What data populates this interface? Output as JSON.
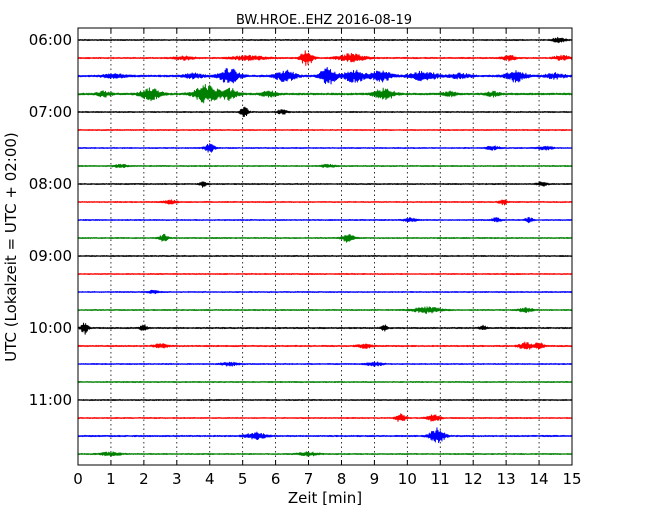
{
  "chart_data": {
    "type": "line",
    "title": "BW.HROE..EHZ 2016-08-19",
    "xlabel": "Zeit  [min]",
    "ylabel": "UTC (Lokalzeit = UTC + 02:00)",
    "xlim": [
      0,
      15
    ],
    "xticks": [
      "0",
      "1",
      "2",
      "3",
      "4",
      "5",
      "6",
      "7",
      "8",
      "9",
      "10",
      "11",
      "12",
      "13",
      "14",
      "15"
    ],
    "yticks": [
      {
        "label": "06:00",
        "trace_index": 0
      },
      {
        "label": "07:00",
        "trace_index": 4
      },
      {
        "label": "08:00",
        "trace_index": 8
      },
      {
        "label": "09:00",
        "trace_index": 12
      },
      {
        "label": "10:00",
        "trace_index": 16
      },
      {
        "label": "11:00",
        "trace_index": 20
      }
    ],
    "grid": true,
    "trace_colors": [
      "#000000",
      "#ff0000",
      "#0000ff",
      "#008000"
    ],
    "traces": [
      {
        "start": "06:00",
        "noise": 0.25,
        "events": [
          [
            14.6,
            0.2,
            1.0
          ]
        ]
      },
      {
        "start": "06:15",
        "noise": 0.3,
        "events": [
          [
            3.2,
            0.3,
            0.8
          ],
          [
            5.2,
            0.5,
            1.0
          ],
          [
            6.95,
            0.18,
            3.5
          ],
          [
            8.3,
            0.4,
            1.8
          ],
          [
            13.1,
            0.2,
            1.2
          ],
          [
            14.7,
            0.25,
            1.0
          ]
        ]
      },
      {
        "start": "06:30",
        "noise": 0.4,
        "events": [
          [
            1.1,
            0.3,
            1.0
          ],
          [
            3.5,
            0.3,
            1.0
          ],
          [
            4.6,
            0.3,
            3.5
          ],
          [
            6.3,
            0.3,
            2.5
          ],
          [
            7.6,
            0.25,
            3.6
          ],
          [
            8.4,
            0.3,
            3.0
          ],
          [
            9.2,
            0.3,
            2.5
          ],
          [
            10.5,
            0.4,
            2.0
          ],
          [
            11.6,
            0.3,
            1.2
          ],
          [
            13.3,
            0.3,
            2.5
          ],
          [
            14.5,
            0.3,
            1.2
          ]
        ]
      },
      {
        "start": "06:45",
        "noise": 0.4,
        "events": [
          [
            0.8,
            0.2,
            1.2
          ],
          [
            2.2,
            0.3,
            2.8
          ],
          [
            3.9,
            0.35,
            4.2
          ],
          [
            4.6,
            0.25,
            2.5
          ],
          [
            5.8,
            0.25,
            1.3
          ],
          [
            9.3,
            0.3,
            2.5
          ],
          [
            11.3,
            0.2,
            1.0
          ],
          [
            12.6,
            0.2,
            1.0
          ]
        ]
      },
      {
        "start": "07:00",
        "noise": 0.25,
        "events": [
          [
            5.05,
            0.12,
            2.2
          ],
          [
            6.2,
            0.15,
            1.0
          ]
        ]
      },
      {
        "start": "07:15",
        "noise": 0.25,
        "events": []
      },
      {
        "start": "07:30",
        "noise": 0.25,
        "events": [
          [
            4.0,
            0.15,
            1.8
          ],
          [
            12.6,
            0.2,
            0.8
          ],
          [
            14.2,
            0.2,
            0.8
          ]
        ]
      },
      {
        "start": "07:45",
        "noise": 0.25,
        "events": [
          [
            1.3,
            0.2,
            0.7
          ],
          [
            7.6,
            0.2,
            0.7
          ]
        ]
      },
      {
        "start": "08:00",
        "noise": 0.25,
        "events": [
          [
            3.8,
            0.1,
            1.3
          ],
          [
            14.1,
            0.15,
            0.9
          ]
        ]
      },
      {
        "start": "08:15",
        "noise": 0.25,
        "events": [
          [
            2.8,
            0.2,
            0.8
          ],
          [
            12.9,
            0.12,
            1.3
          ]
        ]
      },
      {
        "start": "08:30",
        "noise": 0.25,
        "events": [
          [
            10.1,
            0.2,
            0.8
          ],
          [
            12.7,
            0.15,
            0.9
          ],
          [
            13.7,
            0.12,
            1.0
          ]
        ]
      },
      {
        "start": "08:45",
        "noise": 0.25,
        "events": [
          [
            2.6,
            0.12,
            1.6
          ],
          [
            8.2,
            0.18,
            1.8
          ]
        ]
      },
      {
        "start": "09:00",
        "noise": 0.25,
        "events": []
      },
      {
        "start": "09:15",
        "noise": 0.25,
        "events": []
      },
      {
        "start": "09:30",
        "noise": 0.25,
        "events": [
          [
            2.3,
            0.15,
            0.8
          ]
        ]
      },
      {
        "start": "09:45",
        "noise": 0.25,
        "events": [
          [
            10.6,
            0.4,
            1.3
          ],
          [
            13.6,
            0.2,
            1.0
          ]
        ]
      },
      {
        "start": "10:00",
        "noise": 0.3,
        "events": [
          [
            0.2,
            0.1,
            2.8
          ],
          [
            2.0,
            0.1,
            1.6
          ],
          [
            9.3,
            0.1,
            1.3
          ],
          [
            12.3,
            0.1,
            1.0
          ]
        ]
      },
      {
        "start": "10:15",
        "noise": 0.3,
        "events": [
          [
            2.5,
            0.2,
            0.9
          ],
          [
            8.7,
            0.2,
            1.0
          ],
          [
            13.6,
            0.2,
            1.6
          ],
          [
            14.0,
            0.15,
            1.3
          ]
        ]
      },
      {
        "start": "10:30",
        "noise": 0.25,
        "events": [
          [
            4.6,
            0.25,
            0.8
          ],
          [
            9.0,
            0.25,
            0.8
          ]
        ]
      },
      {
        "start": "10:45",
        "noise": 0.25,
        "events": []
      },
      {
        "start": "11:00",
        "noise": 0.25,
        "events": []
      },
      {
        "start": "11:15",
        "noise": 0.25,
        "events": [
          [
            9.8,
            0.15,
            1.8
          ],
          [
            10.8,
            0.2,
            1.5
          ]
        ]
      },
      {
        "start": "11:30",
        "noise": 0.3,
        "events": [
          [
            5.4,
            0.3,
            1.5
          ],
          [
            10.9,
            0.22,
            3.6
          ]
        ]
      },
      {
        "start": "11:45",
        "noise": 0.25,
        "events": [
          [
            1.0,
            0.3,
            0.8
          ],
          [
            7.0,
            0.3,
            0.8
          ]
        ]
      }
    ]
  }
}
